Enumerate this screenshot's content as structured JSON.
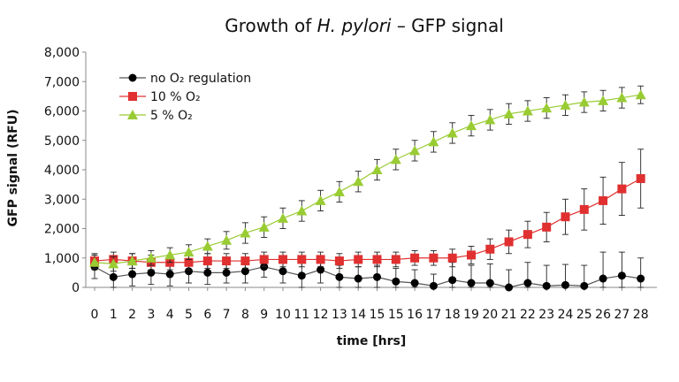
{
  "chart_data": {
    "type": "line",
    "title_parts": [
      "Growth of ",
      "H. pylori",
      " – GFP signal"
    ],
    "xlabel": "time [hrs]",
    "ylabel": "GFP signal (RFU)",
    "ylim": [
      0,
      8000
    ],
    "yticks": [
      "0",
      "1,000",
      "2,000",
      "3,000",
      "4,000",
      "5,000",
      "6,000",
      "7,000",
      "8,000"
    ],
    "yticks_values": [
      0,
      1000,
      2000,
      3000,
      4000,
      5000,
      6000,
      7000,
      8000
    ],
    "x_tick_labels": [
      "0",
      "1",
      "2",
      "3",
      "4",
      "5",
      "6",
      "7",
      "8",
      "9",
      "10",
      "11",
      "12",
      "13",
      "14",
      "15",
      "15",
      "16",
      "17",
      "18",
      "19",
      "20",
      "21",
      "22",
      "23",
      "24",
      "25",
      "26",
      "27",
      "28"
    ],
    "grid": false,
    "legend_position": "top-left",
    "series": [
      {
        "name": "no O₂ regulation",
        "color": "#000000",
        "marker": "circle",
        "values": [
          700,
          350,
          450,
          500,
          450,
          550,
          500,
          500,
          550,
          700,
          550,
          400,
          600,
          350,
          300,
          350,
          200,
          150,
          50,
          250,
          150,
          150,
          0,
          150,
          50,
          80,
          50,
          300,
          400,
          300
        ],
        "errors": [
          400,
          400,
          400,
          400,
          400,
          400,
          400,
          350,
          400,
          350,
          400,
          500,
          450,
          400,
          400,
          400,
          450,
          450,
          400,
          600,
          600,
          650,
          600,
          700,
          700,
          700,
          700,
          900,
          800,
          700
        ]
      },
      {
        "name": "10 % O₂",
        "color": "#e03030",
        "marker": "square",
        "values": [
          900,
          950,
          900,
          850,
          850,
          850,
          900,
          900,
          900,
          950,
          950,
          950,
          950,
          900,
          950,
          950,
          950,
          1000,
          1000,
          1000,
          1100,
          1300,
          1550,
          1800,
          2050,
          2400,
          2650,
          2950,
          3350,
          3700
        ],
        "errors": [
          250,
          250,
          250,
          250,
          250,
          250,
          250,
          250,
          250,
          250,
          250,
          250,
          250,
          250,
          250,
          250,
          250,
          250,
          250,
          300,
          300,
          350,
          400,
          450,
          500,
          600,
          700,
          800,
          900,
          1000
        ]
      },
      {
        "name": "5 % O₂",
        "color": "#99cc33",
        "marker": "triangle",
        "values": [
          850,
          800,
          900,
          1000,
          1100,
          1200,
          1400,
          1600,
          1850,
          2050,
          2350,
          2600,
          2950,
          3250,
          3600,
          4000,
          4350,
          4650,
          4950,
          5250,
          5500,
          5700,
          5900,
          6000,
          6100,
          6200,
          6300,
          6350,
          6450,
          6550
        ],
        "errors": [
          250,
          250,
          250,
          250,
          250,
          250,
          250,
          300,
          350,
          350,
          350,
          350,
          350,
          350,
          350,
          350,
          350,
          350,
          350,
          350,
          350,
          350,
          350,
          350,
          350,
          350,
          350,
          350,
          350,
          300
        ]
      }
    ]
  }
}
